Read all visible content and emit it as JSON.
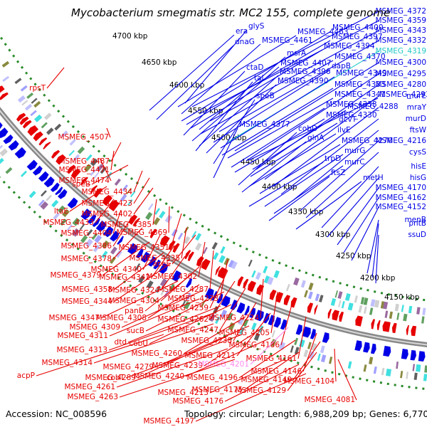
{
  "title": "Mycobacterium smegmatis str. MC2 155, complete genome",
  "footer": {
    "accession": "Accession: NC_008596",
    "topology": "Topology: circular; Length: 6,988,209 bp; Genes: 6,770"
  },
  "colors": {
    "forward": "#0000e6",
    "reverse": "#e60000",
    "pseudo": "#ff88ee",
    "trna": "#22c8c8",
    "backbone": "#888888",
    "tick_dash": "#2a8a2a"
  },
  "ticks": [
    "4150 kbp",
    "4200 kbp",
    "4250 kbp",
    "4300 kbp",
    "4350 kbp",
    "4400 kbp",
    "4450 kbp",
    "4500 kbp",
    "4550 kbp",
    "4600 kbp",
    "4650 kbp",
    "4700 kbp"
  ],
  "right_labels": [
    {
      "text": "MSMEG_4372",
      "kind": "forward"
    },
    {
      "text": "MSMEG_4359",
      "kind": "forward"
    },
    {
      "text": "MSMEG_4343",
      "kind": "forward"
    },
    {
      "text": "MSMEG_4332",
      "kind": "forward"
    },
    {
      "text": "MSMEG_4319",
      "kind": "trna"
    },
    {
      "text": "MSMEG_4300",
      "kind": "forward"
    },
    {
      "text": "MSMEG_4295",
      "kind": "forward"
    },
    {
      "text": "MSMEG_4280",
      "kind": "forward"
    },
    {
      "text": "murE",
      "kind": "forward"
    },
    {
      "text": "mraY",
      "kind": "forward"
    },
    {
      "text": "murD",
      "kind": "forward"
    },
    {
      "text": "ftsW",
      "kind": "forward"
    },
    {
      "text": "MSMEG_4216",
      "kind": "forward"
    },
    {
      "text": "cysS",
      "kind": "forward"
    },
    {
      "text": "hisE",
      "kind": "forward"
    },
    {
      "text": "hisG",
      "kind": "forward"
    },
    {
      "text": "MSMEG_4170",
      "kind": "forward"
    },
    {
      "text": "MSMEG_4162",
      "kind": "forward"
    },
    {
      "text": "MSMEG_4152",
      "kind": "forward"
    },
    {
      "text": "menB",
      "kind": "forward"
    },
    {
      "text": "pntB",
      "kind": "forward"
    },
    {
      "text": "ssuD",
      "kind": "forward"
    }
  ],
  "inner_forward_labels": [
    {
      "text": "era",
      "kind": "forward"
    },
    {
      "text": "glyS",
      "kind": "forward"
    },
    {
      "text": "MSMEG_4463",
      "kind": "forward"
    },
    {
      "text": "dnaG",
      "kind": "forward"
    },
    {
      "text": "MSMEG_4461",
      "kind": "forward"
    },
    {
      "text": "MSMEG_4400",
      "kind": "forward"
    },
    {
      "text": "MSMEG_4397",
      "kind": "forward"
    },
    {
      "text": "MSMEG_4394",
      "kind": "forward"
    },
    {
      "text": "msrA",
      "kind": "forward"
    },
    {
      "text": "MSMEG_4370",
      "kind": "forward"
    },
    {
      "text": "ctaD",
      "kind": "forward"
    },
    {
      "text": "MSMEG_4407",
      "kind": "forward"
    },
    {
      "text": "dapB",
      "kind": "forward"
    },
    {
      "text": "MSMEG_4396",
      "kind": "forward"
    },
    {
      "text": "MSMEG_4349",
      "kind": "forward"
    },
    {
      "text": "tal",
      "kind": "forward"
    },
    {
      "text": "MSMEG_4390",
      "kind": "forward"
    },
    {
      "text": "MSMEG_4333",
      "kind": "forward"
    },
    {
      "text": "MSMEG_4341",
      "kind": "forward"
    },
    {
      "text": "MSMEG_4293",
      "kind": "forward"
    },
    {
      "text": "speB",
      "kind": "forward"
    },
    {
      "text": "MSMEG_4338",
      "kind": "forward"
    },
    {
      "text": "MSMEG_4288",
      "kind": "forward"
    },
    {
      "text": "MSMEG_4330",
      "kind": "forward"
    },
    {
      "text": "gcvT",
      "kind": "forward"
    },
    {
      "text": "MSMEG_4377",
      "kind": "forward"
    },
    {
      "text": "cobD",
      "kind": "forward"
    },
    {
      "text": "ilvE",
      "kind": "forward"
    },
    {
      "text": "glnA",
      "kind": "forward"
    },
    {
      "text": "MSMEG_4270",
      "kind": "forward"
    },
    {
      "text": "trpD",
      "kind": "forward"
    },
    {
      "text": "murG",
      "kind": "forward"
    },
    {
      "text": "murC",
      "kind": "forward"
    },
    {
      "text": "ftsZ",
      "kind": "forward"
    },
    {
      "text": "metH",
      "kind": "forward"
    }
  ],
  "left_labels": [
    {
      "text": "rpsT",
      "kind": "reverse"
    },
    {
      "text": "MSMEG_4507",
      "kind": "reverse"
    },
    {
      "text": "MSMEG_4487",
      "kind": "reverse"
    },
    {
      "text": "MSMEG_4471",
      "kind": "reverse"
    },
    {
      "text": "MSMEG_4474",
      "kind": "reverse"
    },
    {
      "text": "speB",
      "kind": "reverse"
    },
    {
      "text": "MSMEG_4434",
      "kind": "reverse"
    },
    {
      "text": "MSMEG_4423",
      "kind": "reverse"
    },
    {
      "text": "ltaE",
      "kind": "reverse"
    },
    {
      "text": "MSMEG_4402",
      "kind": "reverse"
    },
    {
      "text": "MSMEG_4433",
      "kind": "reverse"
    },
    {
      "text": "MSMEG_4385",
      "kind": "reverse"
    },
    {
      "text": "MSMEG_4404",
      "kind": "reverse"
    },
    {
      "text": "MSMEG_4369",
      "kind": "reverse"
    },
    {
      "text": "MSMEG_4386",
      "kind": "reverse"
    },
    {
      "text": "MSMEG_4351",
      "kind": "reverse"
    },
    {
      "text": "MSMEG_4378",
      "kind": "reverse"
    },
    {
      "text": "MSMEG_4335",
      "kind": "reverse"
    },
    {
      "text": "MSMEG_4340",
      "kind": "reverse"
    },
    {
      "text": "aceE",
      "kind": "reverse"
    },
    {
      "text": "MSMEG_4379",
      "kind": "reverse"
    },
    {
      "text": "MSMEG_4342",
      "kind": "reverse"
    },
    {
      "text": "MSMEG_4302",
      "kind": "reverse"
    },
    {
      "text": "MSMEG_4358",
      "kind": "reverse"
    },
    {
      "text": "MSMEG_4324",
      "kind": "reverse"
    },
    {
      "text": "MSMEG_4287",
      "kind": "reverse"
    },
    {
      "text": "MSMEG_4344",
      "kind": "reverse"
    },
    {
      "text": "MSMEG_4304",
      "kind": "reverse"
    },
    {
      "text": "MSMEG_4273",
      "kind": "reverse"
    },
    {
      "text": "panB",
      "kind": "reverse"
    },
    {
      "text": "MSMEG_4259",
      "kind": "reverse"
    },
    {
      "text": "MSMEG_4347",
      "kind": "reverse"
    },
    {
      "text": "MSMEG_4308",
      "kind": "reverse"
    },
    {
      "text": "MSMEG_4262",
      "kind": "reverse"
    },
    {
      "text": "MSMEG_4224",
      "kind": "reverse"
    },
    {
      "text": "MSMEG_4309",
      "kind": "reverse"
    },
    {
      "text": "sucB",
      "kind": "reverse"
    },
    {
      "text": "MSMEG_4247",
      "kind": "reverse"
    },
    {
      "text": "MSMEG_4311",
      "kind": "reverse"
    },
    {
      "text": "MSMEG_4205",
      "kind": "reverse"
    },
    {
      "text": "dtd",
      "kind": "reverse"
    },
    {
      "text": "cobU",
      "kind": "reverse"
    },
    {
      "text": "MSMEG_4238",
      "kind": "reverse"
    },
    {
      "text": "MSMEG_4186",
      "kind": "reverse"
    },
    {
      "text": "MSMEG_4313",
      "kind": "reverse"
    },
    {
      "text": "MSMEG_4260",
      "kind": "reverse"
    },
    {
      "text": "MSMEG_4211",
      "kind": "reverse"
    },
    {
      "text": "MSMEG_4161",
      "kind": "reverse"
    },
    {
      "text": "MSMEG_4314",
      "kind": "reverse"
    },
    {
      "text": "MSMEG_4279",
      "kind": "reverse"
    },
    {
      "text": "MSMEG_4239",
      "kind": "reverse"
    },
    {
      "text": "MSMEG_4201",
      "kind": "pseudo"
    },
    {
      "text": "MSMEG_4146",
      "kind": "reverse"
    },
    {
      "text": "acpP",
      "kind": "reverse"
    },
    {
      "text": "MSMEG_4289",
      "kind": "reverse"
    },
    {
      "text": "cobT",
      "kind": "reverse"
    },
    {
      "text": "MSMEG_4240",
      "kind": "reverse"
    },
    {
      "text": "MSMEG_4196",
      "kind": "reverse"
    },
    {
      "text": "MSMEG_4149",
      "kind": "reverse"
    },
    {
      "text": "MSMEG_4104",
      "kind": "reverse"
    },
    {
      "text": "MSMEG_4261",
      "kind": "reverse"
    },
    {
      "text": "MSMEG_4175",
      "kind": "reverse"
    },
    {
      "text": "MSMEG_4129",
      "kind": "reverse"
    },
    {
      "text": "MSMEG_4263",
      "kind": "reverse"
    },
    {
      "text": "MSMEG_4213",
      "kind": "reverse"
    },
    {
      "text": "MSMEG_4176",
      "kind": "reverse"
    },
    {
      "text": "MSMEG_4081",
      "kind": "reverse"
    },
    {
      "text": "MSMEG_4197",
      "kind": "reverse"
    }
  ]
}
